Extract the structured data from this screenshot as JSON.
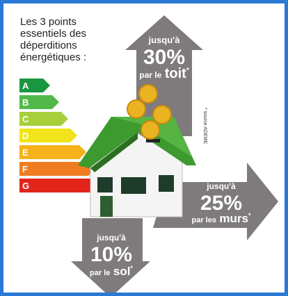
{
  "title": "Les 3 points essentiels des déperditions énergétiques :",
  "energy_classes": [
    "A",
    "B",
    "C",
    "D",
    "E",
    "F",
    "G"
  ],
  "arrows": [
    {
      "prefix": "jusqu'à",
      "value": "30%",
      "lead": "par le",
      "word": "toit",
      "mark": "*"
    },
    {
      "prefix": "jusqu'à",
      "value": "25%",
      "lead": "par les",
      "word": "murs",
      "mark": "*"
    },
    {
      "prefix": "jusqu'à",
      "value": "10%",
      "lead": "par le",
      "word": "sol",
      "mark": "*"
    }
  ],
  "source_note": "* source ADEME"
}
